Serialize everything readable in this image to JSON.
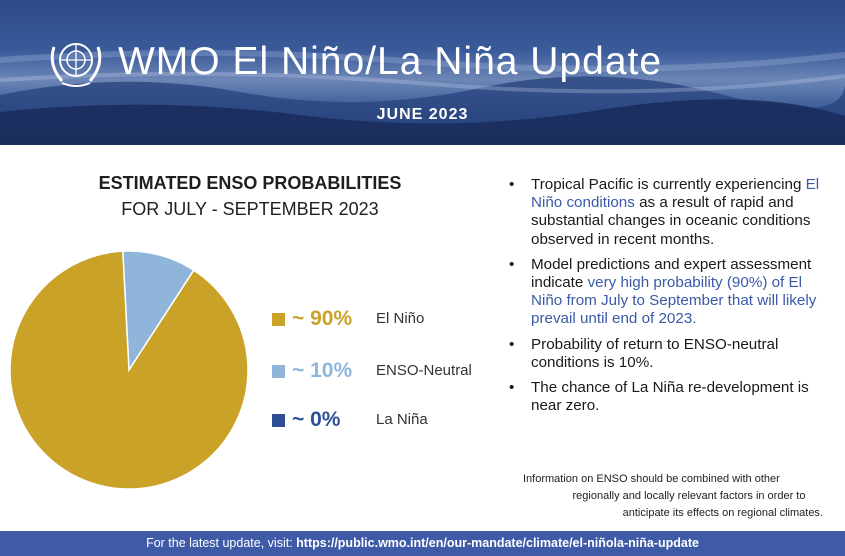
{
  "header": {
    "title": "WMO El Niño/La Niña Update",
    "date": "JUNE 2023",
    "colors": {
      "sky": "#2e4a86",
      "water": "#1d3467"
    },
    "logo_icon": "un-emblem-icon"
  },
  "chart_data": {
    "type": "pie",
    "title": "ESTIMATED ENSO PROBABILITIES",
    "subtitle": "FOR JULY - SEPTEMBER 2023",
    "slices": [
      {
        "label": "El Niño",
        "value": 90,
        "display": "~ 90%",
        "color": "#c9a227"
      },
      {
        "label": "ENSO-Neutral",
        "value": 10,
        "display": "~ 10%",
        "color": "#8fb6da"
      },
      {
        "label": "La Niña",
        "value": 0,
        "display": "~ 0%",
        "color": "#2f4f95"
      }
    ],
    "legend_position": "right"
  },
  "bullets": [
    {
      "parts": [
        {
          "t": "Tropical Pacific is currently experiencing "
        },
        {
          "t": "El Niño conditions",
          "hl": true
        },
        {
          "t": " as a result of rapid and substantial changes in oceanic conditions observed in recent months."
        }
      ]
    },
    {
      "parts": [
        {
          "t": "Model predictions and expert assessment indicate "
        },
        {
          "t": "very high probability (90%) of El Niño from July to September that will likely prevail until end of 2023.",
          "hl": true
        }
      ]
    },
    {
      "parts": [
        {
          "t": "Probability of return to ENSO-neutral conditions is 10%."
        }
      ]
    },
    {
      "parts": [
        {
          "t": "The chance of La Niña re-development is near zero."
        }
      ]
    }
  ],
  "note": {
    "line1": "Information on ENSO should be combined with other",
    "line2": "regionally and locally relevant factors in order to",
    "line3": "anticipate its effects on regional climates."
  },
  "footer": {
    "prefix": "For the latest update, visit: ",
    "url": "https://public.wmo.int/en/our-mandate/climate/el-niñola-niña-update",
    "bg_color": "#3f5aa7"
  }
}
